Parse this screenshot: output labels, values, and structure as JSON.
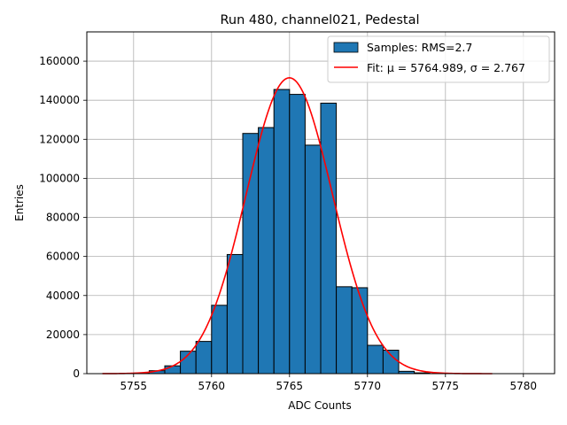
{
  "chart_data": {
    "type": "bar",
    "title": "Run 480, channel021, Pedestal",
    "xlabel": "ADC Counts",
    "ylabel": "Entries",
    "xlim": [
      5752,
      5782
    ],
    "ylim": [
      0,
      175000
    ],
    "xticks": [
      5755,
      5760,
      5765,
      5770,
      5775,
      5780
    ],
    "yticks": [
      0,
      20000,
      40000,
      60000,
      80000,
      100000,
      120000,
      140000,
      160000
    ],
    "grid": true,
    "legend_position": "top-right",
    "bar_color": "#1f77b4",
    "fit_color": "#ff0000",
    "bins": {
      "edges": [
        5755,
        5756,
        5757,
        5758,
        5759,
        5760,
        5761,
        5762,
        5763,
        5764,
        5765,
        5766,
        5767,
        5768,
        5769,
        5770,
        5771,
        5772,
        5773,
        5774
      ],
      "counts": [
        300,
        1500,
        4000,
        11500,
        16500,
        35000,
        61000,
        123000,
        126000,
        145500,
        143000,
        117000,
        138500,
        44500,
        44000,
        14500,
        12000,
        1200,
        400
      ]
    },
    "fit": {
      "mu": 5764.989,
      "sigma": 2.767,
      "amplitude": 151500,
      "x_range": [
        5753,
        5778
      ]
    },
    "legend": [
      {
        "label": "Samples: RMS=2.7",
        "kind": "patch"
      },
      {
        "label": "Fit: μ = 5764.989, σ = 2.767",
        "kind": "line"
      }
    ]
  }
}
